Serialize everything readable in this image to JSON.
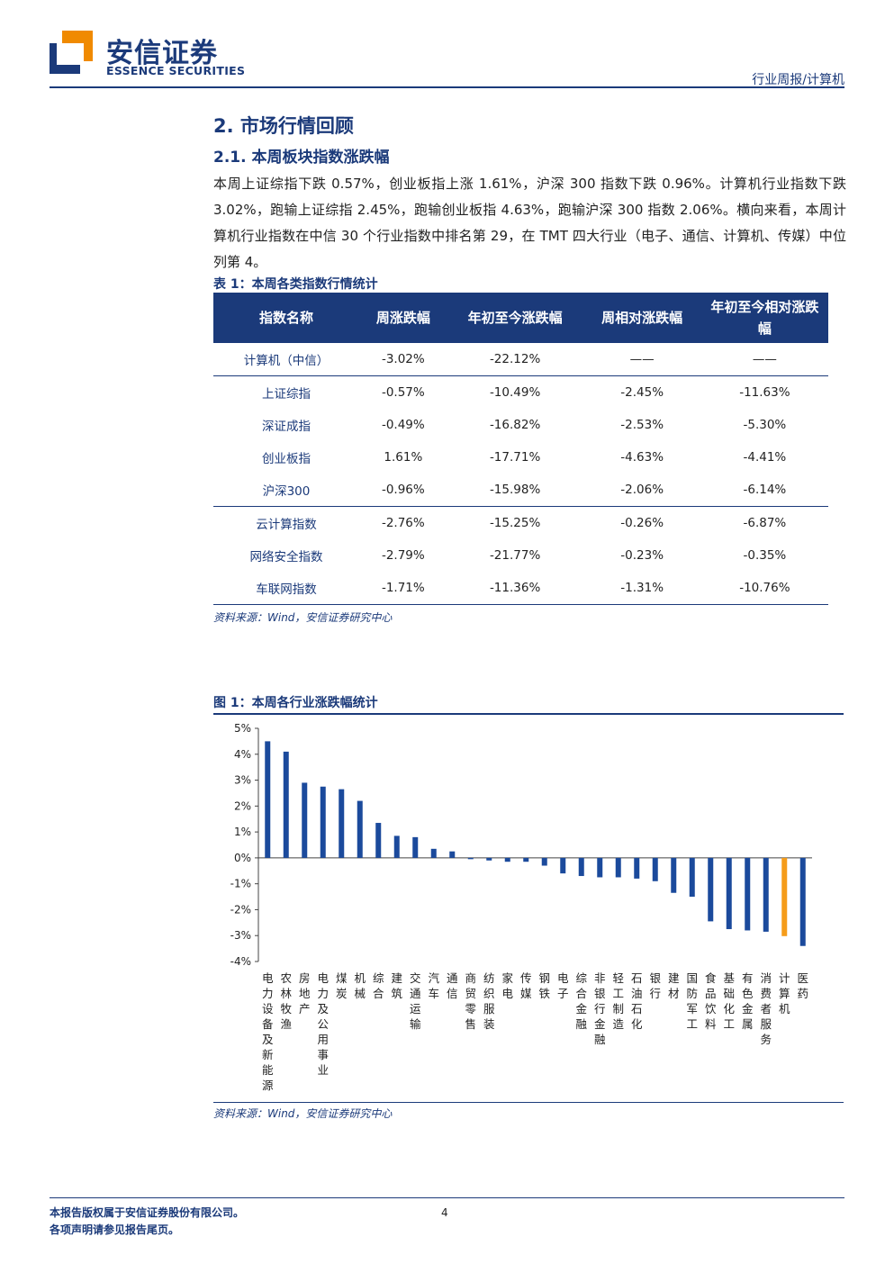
{
  "header": {
    "logo_cn": "安信证券",
    "logo_en": "ESSENCE SECURITIES",
    "right_text": "行业周报/计算机",
    "colors": {
      "brand_blue": "#1b3a7a",
      "brand_orange": "#f08a00"
    }
  },
  "section": {
    "title": "2. 市场行情回顾",
    "subtitle": "2.1. 本周板块指数涨跌幅",
    "paragraph": "本周上证综指下跌 0.57%，创业板指上涨 1.61%，沪深 300 指数下跌 0.96%。计算机行业指数下跌 3.02%，跑输上证综指 2.45%，跑输创业板指 4.63%，跑输沪深 300 指数 2.06%。横向来看，本周计算机行业指数在中信 30 个行业指数中排名第 29，在 TMT 四大行业（电子、通信、计算机、传媒）中位列第 4。"
  },
  "table": {
    "caption": "表 1：本周各类指数行情统计",
    "headers": [
      "指数名称",
      "周涨跌幅",
      "年初至今涨跌幅",
      "周相对涨跌幅",
      "年初至今相对涨跌幅"
    ],
    "rows": [
      [
        "计算机（中信）",
        "-3.02%",
        "-22.12%",
        "——",
        "——"
      ],
      [
        "上证综指",
        "-0.57%",
        "-10.49%",
        "-2.45%",
        "-11.63%"
      ],
      [
        "深证成指",
        "-0.49%",
        "-16.82%",
        "-2.53%",
        "-5.30%"
      ],
      [
        "创业板指",
        "1.61%",
        "-17.71%",
        "-4.63%",
        "-4.41%"
      ],
      [
        "沪深300",
        "-0.96%",
        "-15.98%",
        "-2.06%",
        "-6.14%"
      ],
      [
        "云计算指数",
        "-2.76%",
        "-15.25%",
        "-0.26%",
        "-6.87%"
      ],
      [
        "网络安全指数",
        "-2.79%",
        "-21.77%",
        "-0.23%",
        "-0.35%"
      ],
      [
        "车联网指数",
        "-1.71%",
        "-11.36%",
        "-1.31%",
        "-10.76%"
      ]
    ],
    "source": "资料来源：Wind，安信证券研究中心"
  },
  "figure": {
    "caption": "图 1：本周各行业涨跌幅统计",
    "source": "资料来源：Wind，安信证券研究中心"
  },
  "chart_data": {
    "type": "bar",
    "title": "",
    "xlabel": "",
    "ylabel": "",
    "ylim": [
      -4,
      5
    ],
    "yticks": [
      "5%",
      "4%",
      "3%",
      "2%",
      "1%",
      "0%",
      "-1%",
      "-2%",
      "-3%",
      "-4%"
    ],
    "grid": false,
    "categories": [
      "电力设备及新能源",
      "农林牧渔",
      "房地产",
      "电力及公用事业",
      "煤炭",
      "机械",
      "综合",
      "建筑",
      "交通运输",
      "汽车",
      "通信",
      "商贸零售",
      "纺织服装",
      "家电",
      "传媒",
      "钢铁",
      "电子",
      "综合金融",
      "非银行金融",
      "轻工制造",
      "石油石化",
      "银行",
      "建材",
      "国防军工",
      "食品饮料",
      "基础化工",
      "有色金属",
      "消费者服务",
      "计算机",
      "医药"
    ],
    "values": [
      4.5,
      4.1,
      2.9,
      2.75,
      2.65,
      2.2,
      1.35,
      0.85,
      0.8,
      0.35,
      0.25,
      -0.05,
      -0.1,
      -0.15,
      -0.15,
      -0.3,
      -0.6,
      -0.7,
      -0.75,
      -0.75,
      -0.8,
      -0.9,
      -1.35,
      -1.5,
      -2.45,
      -2.75,
      -2.8,
      -2.85,
      -3.02,
      -3.4
    ],
    "bar_color": "#1b4a9c",
    "highlight_category": "计算机",
    "highlight_color": "#f59c1a"
  },
  "footer": {
    "line1": "本报告版权属于安信证券股份有限公司。",
    "line2": "各项声明请参见报告尾页。",
    "page_number": "4"
  }
}
